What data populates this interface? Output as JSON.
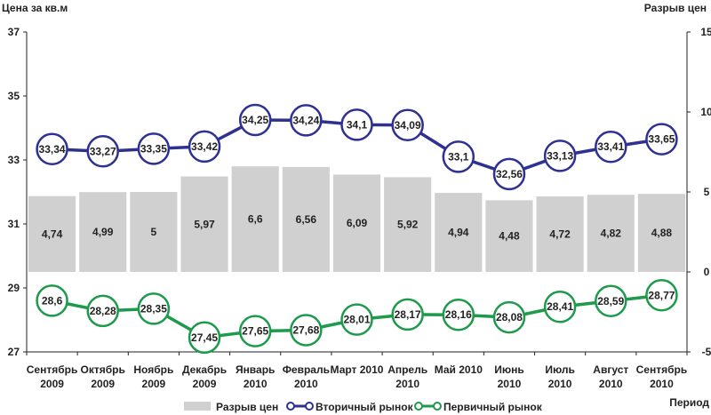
{
  "chart_data": {
    "type": "bar+line",
    "y_left_label": "Цена за кв.м",
    "y_right_label": "Разрыв цен",
    "x_label": "Период",
    "y_left_ticks": [
      "27",
      "29",
      "31",
      "33",
      "35",
      "37"
    ],
    "y_left_range": [
      27,
      37
    ],
    "y_right_ticks": [
      "-5",
      "0",
      "5",
      "10",
      "15"
    ],
    "y_right_range": [
      -5,
      15
    ],
    "categories": [
      {
        "line1": "Сентябрь",
        "line2": "2009"
      },
      {
        "line1": "Октябрь",
        "line2": "2009"
      },
      {
        "line1": "Ноябрь",
        "line2": "2009"
      },
      {
        "line1": "Декабрь",
        "line2": "2009"
      },
      {
        "line1": "Январь",
        "line2": "2010"
      },
      {
        "line1": "Февраль",
        "line2": "2010"
      },
      {
        "line1": "Март 2010",
        "line2": ""
      },
      {
        "line1": "Апрель",
        "line2": "2010"
      },
      {
        "line1": "Май 2010",
        "line2": ""
      },
      {
        "line1": "Июнь",
        "line2": "2010"
      },
      {
        "line1": "Июль",
        "line2": "2010"
      },
      {
        "line1": "Август",
        "line2": "2010"
      },
      {
        "line1": "Сентябрь",
        "line2": "2010"
      }
    ],
    "series": [
      {
        "name": "Разрыв цен",
        "kind": "bar",
        "axis": "right",
        "color": "#d0d0d0",
        "values": [
          4.74,
          4.99,
          5,
          5.97,
          6.6,
          6.56,
          6.09,
          5.92,
          4.94,
          4.48,
          4.72,
          4.82,
          4.88
        ],
        "labels": [
          "4,74",
          "4,99",
          "5",
          "5,97",
          "6,6",
          "6,56",
          "6,09",
          "5,92",
          "4,94",
          "4,48",
          "4,72",
          "4,82",
          "4,88"
        ]
      },
      {
        "name": "Вторичный рынок",
        "kind": "line",
        "axis": "left",
        "color": "#2e3192",
        "values": [
          33.34,
          33.27,
          33.35,
          33.42,
          34.25,
          34.24,
          34.1,
          34.09,
          33.1,
          32.56,
          33.13,
          33.41,
          33.65
        ],
        "labels": [
          "33,34",
          "33,27",
          "33,35",
          "33,42",
          "34,25",
          "34,24",
          "34,1",
          "34,09",
          "33,1",
          "32,56",
          "33,13",
          "33,41",
          "33,65"
        ]
      },
      {
        "name": "Первичный рынок",
        "kind": "line",
        "axis": "left",
        "color": "#1e9a4c",
        "values": [
          28.6,
          28.28,
          28.35,
          27.45,
          27.65,
          27.68,
          28.01,
          28.17,
          28.16,
          28.08,
          28.41,
          28.59,
          28.77
        ],
        "labels": [
          "28,6",
          "28,28",
          "28,35",
          "27,45",
          "27,65",
          "27,68",
          "28,01",
          "28,17",
          "28,16",
          "28,08",
          "28,41",
          "28,59",
          "28,77"
        ]
      }
    ],
    "legend": [
      "Разрыв цен",
      "Вторичный рынок",
      "Первичный рынок"
    ]
  }
}
